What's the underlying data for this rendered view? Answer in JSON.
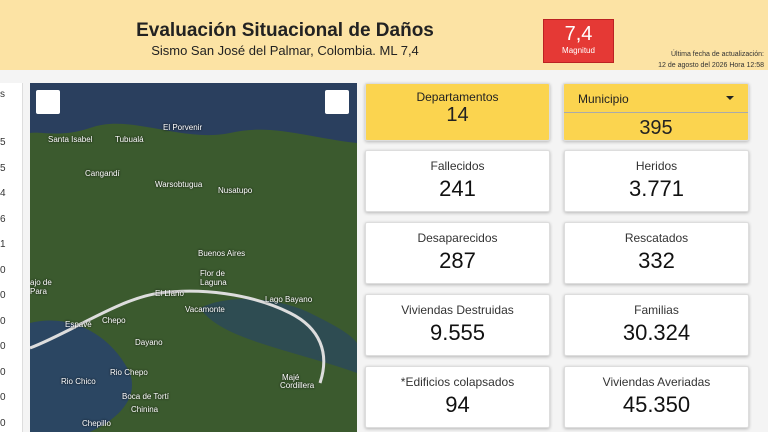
{
  "header": {
    "title": "Evaluación Situacional de Daños",
    "subtitle": "Sismo San José del Palmar, Colombia. ML 7,4",
    "magnitude": {
      "value": "7,4",
      "label": "Magnitud"
    },
    "update": {
      "label": "Última fecha de actualización:",
      "date": "12 de agosto del 2026 Hora   12:58"
    }
  },
  "left_list": [
    "s",
    "5",
    "5",
    "4",
    "6",
    "1",
    "0",
    "0",
    "0",
    "0",
    "0",
    "0",
    "0"
  ],
  "map": {
    "labels": [
      "Santa Isabel",
      "Tubualá",
      "El Porvenir",
      "Cangandí",
      "Warsobtugua",
      "Nusatupo",
      "Buenos Aires",
      "Flor de",
      "Laguna",
      "El Llano",
      "Lago Bayano",
      "ajo de",
      "Para",
      "Chepo",
      "Espavé",
      "Vacamonte",
      "Dayano",
      "Rio Chico",
      "Boca de Tortí",
      "Chinina",
      "Majé",
      "Cordillera",
      "Chepillo",
      "Rio Chepo"
    ]
  },
  "filters": [
    {
      "label": "Departamentos",
      "value": "14"
    },
    {
      "label": "Municipio",
      "value": "395"
    }
  ],
  "cards": [
    {
      "label": "Fallecidos",
      "value": "241"
    },
    {
      "label": "Heridos",
      "value": "3.771"
    },
    {
      "label": "Desaparecidos",
      "value": "287"
    },
    {
      "label": "Rescatados",
      "value": "332"
    },
    {
      "label": "Viviendas Destruidas",
      "value": "9.555"
    },
    {
      "label": "Familias",
      "value": "30.324"
    },
    {
      "label": "*Edificios colapsados",
      "value": "94"
    },
    {
      "label": "Viviendas Averiadas",
      "value": "45.350"
    }
  ]
}
